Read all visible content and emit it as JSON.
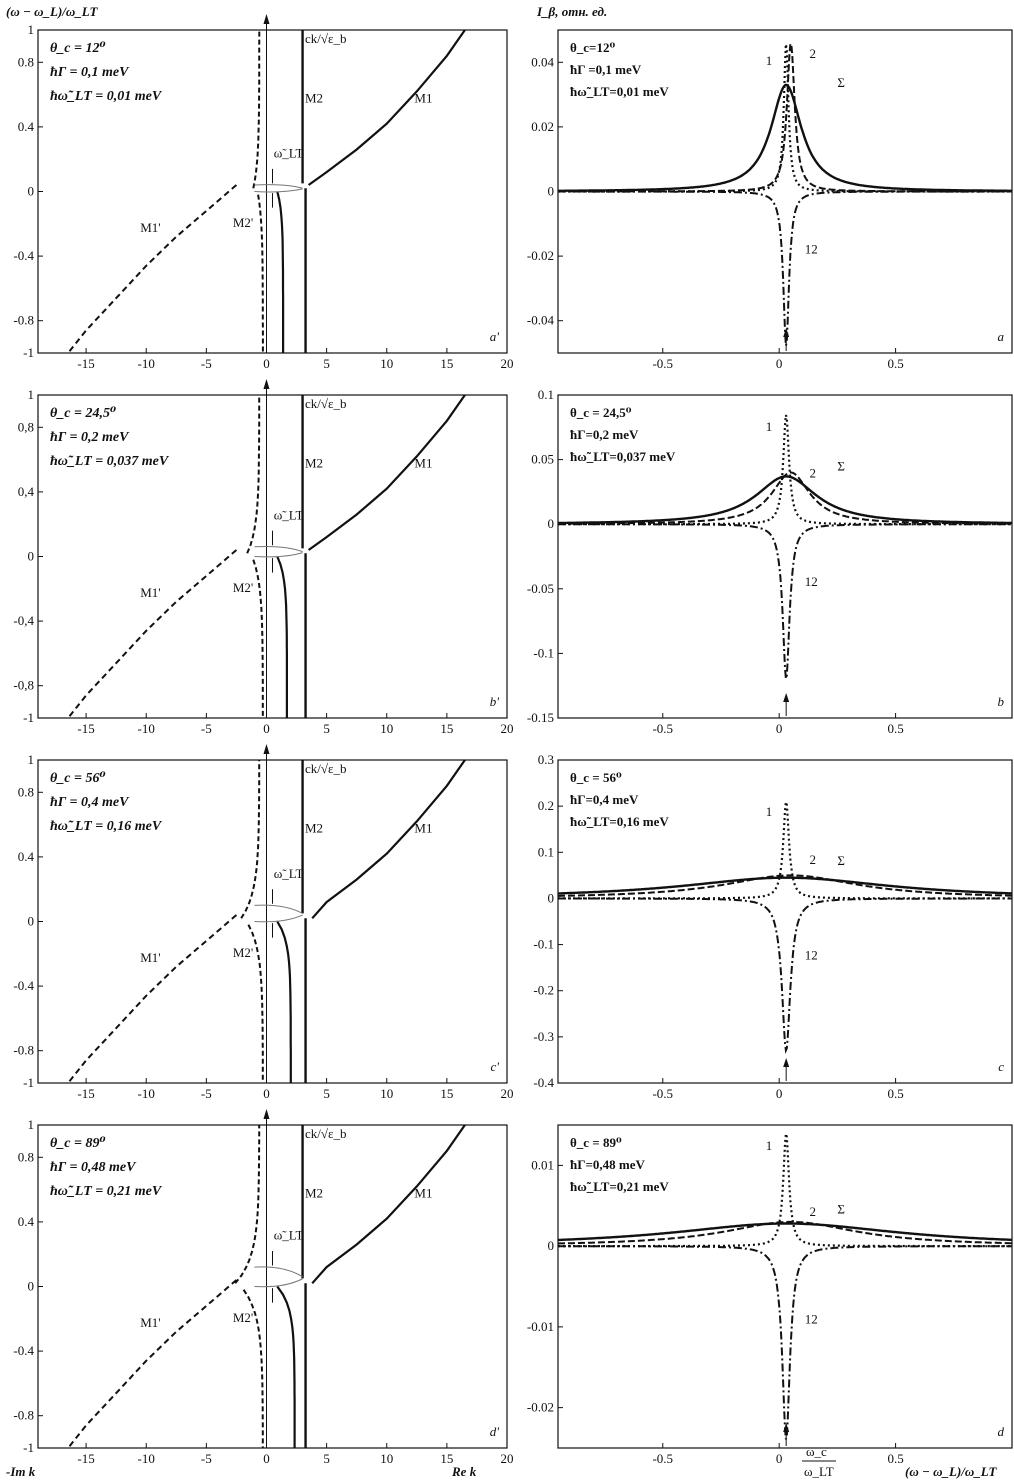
{
  "figure": {
    "left_axis_title": "(ω − ω_L)/ω_LT",
    "right_axis_title": "I_β, отн. ед.",
    "left_xlabel_left": "-Im k",
    "left_xlabel_right": "Re k",
    "right_xlabel": "(ω − ω_L)/ω_LT",
    "arrow_label_num": "ω_c",
    "arrow_label_den": "ω_LT",
    "curve_labels_left": {
      "m1": "M1",
      "m2": "M2",
      "m1p": "M1'",
      "m2p": "M2'",
      "ck": "ck/√ε_b",
      "wlt": "ω̃_LT"
    },
    "curve_labels_right": {
      "c1": "1",
      "c2": "2",
      "sum": "Σ",
      "c12": "12"
    }
  },
  "chart_data": [
    {
      "type": "line",
      "panel": "a'",
      "params": [
        "θ_c = 12⁰",
        "ħΓ = 0,1 meV",
        "ħω̃_LT = 0,01 meV"
      ],
      "xlim": [
        -19,
        20
      ],
      "ylim": [
        -1,
        1
      ],
      "xticks": [
        -15,
        -10,
        -5,
        0,
        5,
        10,
        15,
        20
      ],
      "yticks": [
        -1,
        -0.8,
        -0.4,
        0,
        0.4,
        0.8,
        1
      ],
      "ytick_labels": [
        "-1",
        "-0.8",
        "-0.4",
        "0",
        "0.4",
        "0.8",
        "1"
      ],
      "branch_m2_re": 3,
      "split": 0.04,
      "series": [
        {
          "name": "M1",
          "x": [
            3.5,
            5,
            7.5,
            10,
            12.5,
            15,
            16.5
          ],
          "y": [
            0.04,
            0.12,
            0.26,
            0.42,
            0.62,
            0.84,
            1.0
          ]
        },
        {
          "name": "M1'",
          "x": [
            -2.5,
            -5,
            -7.5,
            -10,
            -12.5,
            -15,
            -16.5
          ],
          "y": [
            0.04,
            -0.12,
            -0.28,
            -0.46,
            -0.66,
            -0.86,
            -1.0
          ]
        }
      ]
    },
    {
      "type": "line",
      "panel": "b'",
      "params": [
        "θ_c = 24,5⁰",
        "ħΓ = 0,2 meV",
        "ħω̃_LT = 0,037 meV"
      ],
      "xlim": [
        -19,
        20
      ],
      "ylim": [
        -1,
        1
      ],
      "xticks": [
        -15,
        -10,
        -5,
        0,
        5,
        10,
        15,
        20
      ],
      "yticks": [
        -1,
        -0.8,
        -0.4,
        0,
        0.4,
        0.8,
        1
      ],
      "ytick_labels": [
        "-1",
        "-0,8",
        "-0,4",
        "0",
        "0,4",
        "0,8",
        "1"
      ],
      "branch_m2_re": 3,
      "split": 0.06,
      "series": [
        {
          "name": "M1",
          "x": [
            3.5,
            5,
            7.5,
            10,
            12.5,
            15,
            16.5
          ],
          "y": [
            0.04,
            0.12,
            0.26,
            0.42,
            0.62,
            0.84,
            1.0
          ]
        },
        {
          "name": "M1'",
          "x": [
            -2.5,
            -5,
            -7.5,
            -10,
            -12.5,
            -15,
            -16.5
          ],
          "y": [
            0.04,
            -0.12,
            -0.28,
            -0.46,
            -0.66,
            -0.86,
            -1.0
          ]
        }
      ]
    },
    {
      "type": "line",
      "panel": "c'",
      "params": [
        "θ_c = 56⁰",
        "ħΓ = 0,4 meV",
        "ħω̃_LT = 0,16 meV"
      ],
      "xlim": [
        -19,
        20
      ],
      "ylim": [
        -1,
        1
      ],
      "xticks": [
        -15,
        -10,
        -5,
        0,
        5,
        10,
        15,
        20
      ],
      "yticks": [
        -1,
        -0.8,
        -0.4,
        0,
        0.4,
        0.8,
        1
      ],
      "ytick_labels": [
        "-1",
        "-0.8",
        "-0.4",
        "0",
        "0.4",
        "0.8",
        "1"
      ],
      "branch_m2_re": 3,
      "split": 0.1,
      "series": [
        {
          "name": "M1",
          "x": [
            3.8,
            5,
            7.5,
            10,
            12.5,
            15,
            16.5
          ],
          "y": [
            0.02,
            0.12,
            0.26,
            0.42,
            0.62,
            0.84,
            1.0
          ]
        },
        {
          "name": "M1'",
          "x": [
            -2.5,
            -5,
            -7.5,
            -10,
            -12.5,
            -15,
            -16.5
          ],
          "y": [
            0.04,
            -0.12,
            -0.28,
            -0.46,
            -0.66,
            -0.86,
            -1.0
          ]
        }
      ]
    },
    {
      "type": "line",
      "panel": "d'",
      "params": [
        "θ_c = 89⁰",
        "ħΓ = 0,48 meV",
        "ħω̃_LT = 0,21 meV"
      ],
      "xlim": [
        -19,
        20
      ],
      "ylim": [
        -1,
        1
      ],
      "xticks": [
        -15,
        -10,
        -5,
        0,
        5,
        10,
        15,
        20
      ],
      "yticks": [
        -1,
        -0.8,
        -0.4,
        0,
        0.4,
        0.8,
        1
      ],
      "ytick_labels": [
        "-1",
        "-0.8",
        "-0.4",
        "0",
        "0.4",
        "0.8",
        "1"
      ],
      "branch_m2_re": 3,
      "split": 0.12,
      "series": [
        {
          "name": "M1",
          "x": [
            3.8,
            5,
            7.5,
            10,
            12.5,
            15,
            16.5
          ],
          "y": [
            0.02,
            0.12,
            0.26,
            0.42,
            0.62,
            0.84,
            1.0
          ]
        },
        {
          "name": "M1'",
          "x": [
            -2.5,
            -5,
            -7.5,
            -10,
            -12.5,
            -15,
            -16.5
          ],
          "y": [
            0.04,
            -0.12,
            -0.28,
            -0.46,
            -0.66,
            -0.86,
            -1.0
          ]
        }
      ]
    },
    {
      "type": "line",
      "panel": "a",
      "params": [
        "θ_c=12⁰",
        "ħΓ =0,1 meV",
        "ħω̃_LT=0,01 meV"
      ],
      "xlim": [
        -0.95,
        1.0
      ],
      "ylim": [
        -0.05,
        0.05
      ],
      "xticks": [
        -0.5,
        0,
        0.5
      ],
      "xtick_labels": [
        "-0.5",
        "0",
        "0.5"
      ],
      "yticks": [
        -0.04,
        -0.02,
        0,
        0.02,
        0.04
      ],
      "ytick_labels": [
        "-0.04",
        "-0.02",
        "0",
        "0.02",
        "0.04"
      ],
      "center": 0.03,
      "series": [
        {
          "name": "1",
          "peak": 0.046,
          "width": 0.012
        },
        {
          "name": "2",
          "peak": 0.046,
          "width": 0.02
        },
        {
          "name": "Σ",
          "peak": 0.033,
          "width": 0.08
        },
        {
          "name": "12",
          "peak": -0.048,
          "width": 0.015
        }
      ]
    },
    {
      "type": "line",
      "panel": "b",
      "params": [
        "θ_c = 24,5⁰",
        "ħΓ=0,2 meV",
        "ħω̃_LT=0,037 meV"
      ],
      "xlim": [
        -0.95,
        1.0
      ],
      "ylim": [
        -0.15,
        0.1
      ],
      "xticks": [
        -0.5,
        0,
        0.5
      ],
      "xtick_labels": [
        "-0.5",
        "0",
        "0.5"
      ],
      "yticks": [
        -0.15,
        -0.1,
        -0.05,
        0,
        0.05,
        0.1
      ],
      "ytick_labels": [
        "-0.15",
        "-0.1",
        "-0.05",
        "0",
        "0.05",
        "0.1"
      ],
      "center": 0.03,
      "series": [
        {
          "name": "1",
          "peak": 0.085,
          "width": 0.015
        },
        {
          "name": "2",
          "peak": 0.04,
          "width": 0.1
        },
        {
          "name": "Σ",
          "peak": 0.037,
          "width": 0.16
        },
        {
          "name": "12",
          "peak": -0.12,
          "width": 0.018
        }
      ]
    },
    {
      "type": "line",
      "panel": "c",
      "params": [
        "θ_c = 56⁰",
        "ħΓ=0,4 meV",
        "ħω̃_LT=0,16 meV"
      ],
      "xlim": [
        -0.95,
        1.0
      ],
      "ylim": [
        -0.4,
        0.3
      ],
      "xticks": [
        -0.5,
        0,
        0.5
      ],
      "xtick_labels": [
        "-0.5",
        "0",
        "0.5"
      ],
      "yticks": [
        -0.4,
        -0.3,
        -0.2,
        -0.1,
        0,
        0.1,
        0.2,
        0.3
      ],
      "ytick_labels": [
        "-0.4",
        "-0.3",
        "-0.2",
        "-0.1",
        "0",
        "0.1",
        "0.2",
        "0.3"
      ],
      "center": 0.03,
      "series": [
        {
          "name": "1",
          "peak": 0.21,
          "width": 0.015
        },
        {
          "name": "2",
          "peak": 0.05,
          "width": 0.35
        },
        {
          "name": "Σ",
          "peak": 0.045,
          "width": 0.55
        },
        {
          "name": "12",
          "peak": -0.33,
          "width": 0.022
        }
      ]
    },
    {
      "type": "line",
      "panel": "d",
      "params": [
        "θ_c = 89⁰",
        "ħΓ=0,48 meV",
        "ħω̃_LT=0,21 meV"
      ],
      "xlim": [
        -0.95,
        1.0
      ],
      "ylim": [
        -0.025,
        0.015
      ],
      "xticks": [
        -0.5,
        0,
        0.5
      ],
      "xtick_labels": [
        "-0.5",
        "0",
        "0.5"
      ],
      "yticks": [
        -0.02,
        -0.01,
        0,
        0.01
      ],
      "ytick_labels": [
        "-0.02",
        "-0.01",
        "0",
        "0.01"
      ],
      "center": 0.03,
      "series": [
        {
          "name": "1",
          "peak": 0.014,
          "width": 0.015
        },
        {
          "name": "2",
          "peak": 0.003,
          "width": 0.35
        },
        {
          "name": "Σ",
          "peak": 0.0028,
          "width": 0.6
        },
        {
          "name": "12",
          "peak": -0.024,
          "width": 0.02
        }
      ]
    }
  ]
}
